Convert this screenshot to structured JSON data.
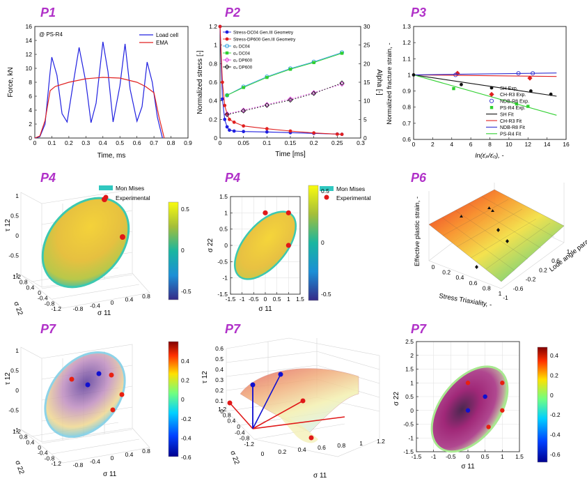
{
  "labels": {
    "p1": "P1",
    "p2": "P2",
    "p3": "P3",
    "p4a": "P4",
    "p4b": "P4",
    "p6": "P6",
    "p7a": "P7",
    "p7b": "P7",
    "p7c": "P7"
  },
  "chart_data": [
    {
      "id": "p1",
      "type": "line",
      "xlabel": "Time, ms",
      "ylabel": "Force, kN",
      "annotation": "@ PS-R4",
      "xlim": [
        0,
        0.9
      ],
      "ylim": [
        0,
        16
      ],
      "xticks": [
        "0",
        "0.1",
        "0.2",
        "0.3",
        "0.4",
        "0.5",
        "0.6",
        "0.7",
        "0.8",
        "0.9"
      ],
      "yticks": [
        "0",
        "2",
        "4",
        "6",
        "8",
        "10",
        "12",
        "14",
        "16"
      ],
      "legend_position": "top-right",
      "series": [
        {
          "name": "Load cell",
          "color": "#2020e0",
          "x": [
            0.0,
            0.03,
            0.06,
            0.09,
            0.1,
            0.13,
            0.16,
            0.19,
            0.22,
            0.26,
            0.3,
            0.33,
            0.36,
            0.4,
            0.43,
            0.46,
            0.5,
            0.53,
            0.56,
            0.6,
            0.63,
            0.66,
            0.69,
            0.72,
            0.75
          ],
          "y": [
            0.0,
            0.2,
            2.0,
            9.5,
            11.6,
            9.0,
            3.5,
            2.3,
            7.0,
            13.0,
            8.0,
            2.2,
            5.0,
            13.8,
            9.5,
            2.3,
            7.5,
            13.5,
            7.0,
            2.4,
            4.5,
            10.9,
            8.0,
            3.0,
            0.0
          ]
        },
        {
          "name": "EMA",
          "color": "#e02020",
          "x": [
            0.0,
            0.03,
            0.06,
            0.09,
            0.12,
            0.2,
            0.3,
            0.4,
            0.5,
            0.6,
            0.65,
            0.7,
            0.73,
            0.76
          ],
          "y": [
            0.0,
            0.3,
            2.5,
            6.8,
            7.4,
            8.0,
            8.5,
            8.7,
            8.6,
            8.0,
            7.4,
            6.5,
            3.0,
            0.0
          ]
        }
      ]
    },
    {
      "id": "p2",
      "type": "line",
      "xlabel": "Time [ms]",
      "ylabel": "Normalized stress [-]",
      "y2label": "Alpha [-]",
      "xlim": [
        0,
        0.3
      ],
      "ylim": [
        0,
        1.2
      ],
      "y2lim": [
        0,
        30
      ],
      "xticks": [
        "0",
        "0.05",
        "0.1",
        "0.15",
        "0.2",
        "0.25",
        "0.3"
      ],
      "yticks": [
        "0",
        "0.2",
        "0.4",
        "0.6",
        "0.8",
        "1",
        "1.2"
      ],
      "y2ticks": [
        "0",
        "5",
        "10",
        "15",
        "20",
        "25",
        "30"
      ],
      "legend_position": "top-left",
      "series": [
        {
          "name": "Stress-DC04 Gen.III Geometry",
          "color": "#2020e0",
          "marker": "dot",
          "axis": "left",
          "x": [
            0.0,
            0.005,
            0.01,
            0.015,
            0.02,
            0.03,
            0.05,
            0.1,
            0.15,
            0.2,
            0.25,
            0.26
          ],
          "y": [
            1.2,
            0.42,
            0.2,
            0.12,
            0.085,
            0.075,
            0.07,
            0.065,
            0.058,
            0.05,
            0.043,
            0.04
          ]
        },
        {
          "name": "Stress-DP600 Gen.III Geometry",
          "color": "#e02020",
          "marker": "dot",
          "axis": "left",
          "x": [
            0.0,
            0.005,
            0.01,
            0.015,
            0.02,
            0.03,
            0.05,
            0.1,
            0.15,
            0.2,
            0.25,
            0.26
          ],
          "y": [
            1.2,
            0.6,
            0.35,
            0.26,
            0.2,
            0.17,
            0.13,
            0.1,
            0.075,
            0.055,
            0.042,
            0.04
          ]
        },
        {
          "name": "α₂ DC04",
          "color": "#30a0e0",
          "marker": "circle",
          "axis": "right",
          "x": [
            0.015,
            0.05,
            0.1,
            0.15,
            0.2,
            0.26
          ],
          "y": [
            11.5,
            13.8,
            16.5,
            18.7,
            20.5,
            23.0
          ]
        },
        {
          "name": "α₄ DC04",
          "color": "#30d030",
          "marker": "square",
          "axis": "right",
          "x": [
            0.015,
            0.05,
            0.1,
            0.15,
            0.2,
            0.26
          ],
          "y": [
            11.5,
            13.6,
            16.3,
            18.5,
            20.3,
            22.8
          ]
        },
        {
          "name": "α₂ DP600",
          "color": "#e040e0",
          "marker": "diamond",
          "axis": "right",
          "x": [
            0.015,
            0.05,
            0.1,
            0.15,
            0.2,
            0.26
          ],
          "y": [
            6.5,
            7.5,
            9.0,
            10.5,
            12.2,
            14.5
          ]
        },
        {
          "name": "α₄ DP600",
          "color": "#222222",
          "marker": "diamond",
          "axis": "right",
          "x": [
            0.015,
            0.05,
            0.1,
            0.15,
            0.2,
            0.26
          ],
          "y": [
            6.3,
            7.3,
            8.8,
            10.2,
            12.0,
            14.8
          ]
        }
      ]
    },
    {
      "id": "p3",
      "type": "scatter",
      "xlabel": "ln(ε̇ₚ/ε̇₀), -",
      "ylabel": "Normalized fracture strain, -",
      "xlim": [
        0,
        16
      ],
      "ylim": [
        0.6,
        1.3
      ],
      "xticks": [
        "0",
        "2",
        "4",
        "6",
        "8",
        "10",
        "12",
        "14",
        "16"
      ],
      "yticks": [
        "0.6",
        "0.7",
        "0.8",
        "0.9",
        "1",
        "1.1",
        "1.2",
        "1.3"
      ],
      "legend_position": "bottom-right",
      "series": [
        {
          "name": "SH Exp.",
          "color": "#111111",
          "marker": "dot",
          "x": [
            0,
            5.0,
            12.3,
            14.4
          ],
          "y": [
            1.0,
            0.94,
            0.9,
            0.88
          ]
        },
        {
          "name": "CH-R3 Exp.",
          "color": "#e02020",
          "marker": "diamond",
          "x": [
            0,
            4.6,
            12.2
          ],
          "y": [
            1.0,
            1.01,
            0.98
          ]
        },
        {
          "name": "NDB-R8 Exp.",
          "color": "#3030d0",
          "marker": "circle",
          "x": [
            0,
            4.4,
            11.0,
            12.5
          ],
          "y": [
            1.0,
            1.0,
            1.01,
            1.01
          ]
        },
        {
          "name": "PS-R4 Exp.",
          "color": "#30d030",
          "marker": "square",
          "x": [
            0,
            4.2,
            10.8,
            12.0
          ],
          "y": [
            1.0,
            0.915,
            0.82,
            0.805
          ]
        },
        {
          "name": "SH Fit",
          "color": "#111111",
          "marker": "line",
          "x": [
            0,
            15
          ],
          "y": [
            1.0,
            0.868
          ]
        },
        {
          "name": "CH-R3 Fit",
          "color": "#e02020",
          "marker": "line",
          "x": [
            0,
            15
          ],
          "y": [
            1.0,
            0.99
          ]
        },
        {
          "name": "NDB-R8 Fit",
          "color": "#3030d0",
          "marker": "line",
          "x": [
            0,
            15
          ],
          "y": [
            1.0,
            1.012
          ]
        },
        {
          "name": "PS-R4 Fit",
          "color": "#30d030",
          "marker": "line",
          "x": [
            0,
            15
          ],
          "y": [
            1.0,
            0.75
          ]
        }
      ]
    },
    {
      "id": "p4a",
      "type": "3d-surface",
      "xlabel": "σ 11",
      "ylabel": "σ 22",
      "zlabel": "τ 12",
      "xticks": [
        "-0.8",
        "-0.4",
        "0",
        "0.4",
        "0.8"
      ],
      "yticks": [
        "-1.2",
        "-0.8",
        "-0.4",
        "0",
        "0.4",
        "0.8",
        "1.2"
      ],
      "zticks": [
        "-1",
        "-0.5",
        "0",
        "0.5",
        "1"
      ],
      "legend": [
        "Mon Mises",
        "Experimental"
      ],
      "colorbar_ticks": [
        "0.5",
        "0",
        "-0.5"
      ]
    },
    {
      "id": "p4b",
      "type": "2d-ellipse",
      "xlabel": "σ 11",
      "ylabel": "σ 22",
      "xlim": [
        -1.5,
        1.5
      ],
      "ylim": [
        -1.5,
        1.5
      ],
      "xticks": [
        "-1.5",
        "-1",
        "-0.5",
        "0",
        "0.5",
        "1",
        "1.5"
      ],
      "yticks": [
        "-1.5",
        "-1",
        "-0.5",
        "0",
        "0.5",
        "1",
        "1.5"
      ],
      "legend": [
        "Mon Mises",
        "Experimental"
      ],
      "points": [
        {
          "x": 0,
          "y": 1
        },
        {
          "x": 1,
          "y": 1
        },
        {
          "x": 1,
          "y": 0
        }
      ],
      "colorbar_ticks": [
        "0.5",
        "0",
        "-0.5"
      ]
    },
    {
      "id": "p6",
      "type": "3d-surface",
      "xlabel": "Stress Triaxiality, -",
      "ylabel": "Lode angle para., -",
      "zlabel": "Effective plastic strain, -",
      "xticks": [
        "0",
        "0.2",
        "0.4",
        "0.6",
        "0.8",
        "1"
      ],
      "yticks": [
        "-1",
        "-0.6",
        "-0.2",
        "0.2",
        "0.6",
        "1"
      ]
    },
    {
      "id": "p7a",
      "type": "3d-surface",
      "xlabel": "σ 11",
      "ylabel": "σ 22",
      "zlabel": "τ 12",
      "xticks": [
        "-0.8",
        "-0.4",
        "0",
        "0.4",
        "0.8"
      ],
      "yticks": [
        "-1.2",
        "-0.8",
        "-0.4",
        "0",
        "0.4",
        "0.8",
        "1.2"
      ],
      "zticks": [
        "-1",
        "-0.5",
        "0",
        "0.5",
        "1"
      ],
      "colorbar_ticks": [
        "0.4",
        "0.2",
        "0",
        "-0.2",
        "-0.4",
        "-0.6"
      ]
    },
    {
      "id": "p7b",
      "type": "3d-surface",
      "xlabel": "σ 11",
      "ylabel": "σ 22",
      "zlabel": "τ 12",
      "xticks": [
        "0",
        "0.2",
        "0.4",
        "0.6",
        "0.8",
        "1",
        "1.2"
      ],
      "yticks": [
        "-1.2",
        "-0.8",
        "-0.4",
        "0",
        "0.4",
        "0.8",
        "1.2"
      ],
      "zticks": [
        "0",
        "0.1",
        "0.2",
        "0.3",
        "0.4",
        "0.5",
        "0.6"
      ]
    },
    {
      "id": "p7c",
      "type": "2d-ellipse",
      "xlabel": "σ 11",
      "ylabel": "σ 22",
      "xlim": [
        -1.5,
        1.5
      ],
      "ylim": [
        -1.5,
        2.5
      ],
      "xticks": [
        "-1.5",
        "-1",
        "-0.5",
        "0",
        "0.5",
        "1",
        "1.5"
      ],
      "yticks": [
        "-1.5",
        "-1",
        "-0.5",
        "0",
        "0.5",
        "1",
        "1.5",
        "2",
        "2.5"
      ],
      "points_red": [
        {
          "x": 0,
          "y": 1
        },
        {
          "x": 1,
          "y": 1
        },
        {
          "x": 1,
          "y": 0
        },
        {
          "x": 0.6,
          "y": -0.6
        }
      ],
      "points_blue": [
        {
          "x": 0,
          "y": 0
        },
        {
          "x": 0.5,
          "y": 0.5
        }
      ],
      "colorbar_ticks": [
        "0.4",
        "0.2",
        "0",
        "-0.2",
        "-0.4",
        "-0.6"
      ]
    }
  ]
}
